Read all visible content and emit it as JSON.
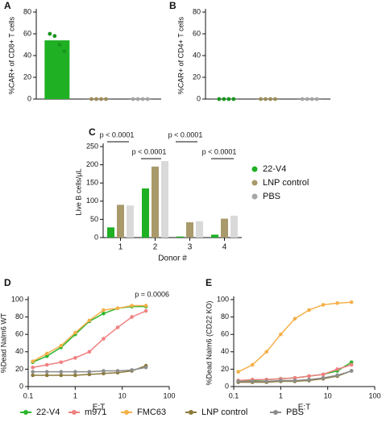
{
  "chart_data": [
    {
      "type": "bar",
      "label": "A",
      "ylabel": "%CAR+ of CD8+ T cells",
      "values": [
        54,
        0,
        0
      ],
      "colors": [
        "#1fb024",
        "#9c8c5a",
        "#a6a6a6"
      ],
      "points": [
        [
          60,
          58,
          50,
          44
        ],
        [
          0,
          0,
          0,
          0
        ],
        [
          0,
          0,
          0,
          0
        ]
      ],
      "ylim": [
        0,
        80
      ],
      "yticks": [
        0,
        20,
        40,
        60,
        80
      ]
    },
    {
      "type": "bar",
      "label": "B",
      "ylabel": "%CAR+ of CD4+ T cells",
      "values": [
        0,
        0,
        0
      ],
      "colors": [
        "#1fb024",
        "#9c8c5a",
        "#a6a6a6"
      ],
      "points": [
        [
          0,
          0,
          0,
          0
        ],
        [
          0,
          0,
          0,
          0
        ],
        [
          0,
          0,
          0,
          0
        ]
      ],
      "ylim": [
        0,
        80
      ],
      "yticks": [
        0,
        20,
        40,
        60,
        80
      ]
    },
    {
      "type": "grouped-bar",
      "label": "C",
      "ylabel": "Live B cells/µL",
      "xlabel": "Donor #",
      "categories": [
        "1",
        "2",
        "3",
        "4"
      ],
      "series": [
        {
          "name": "22-V4",
          "color": "#1fb024",
          "values": [
            28,
            135,
            3,
            8
          ]
        },
        {
          "name": "LNP control",
          "color": "#a89a6a",
          "values": [
            90,
            195,
            42,
            52
          ]
        },
        {
          "name": "PBS",
          "color": "#d9d9d9",
          "values": [
            88,
            210,
            45,
            60
          ]
        }
      ],
      "annotations": [
        "p < 0.0001",
        "p < 0.0001",
        "p < 0.0001",
        "p < 0.0001"
      ],
      "ylim": [
        0,
        250
      ],
      "yticks": [
        0,
        50,
        100,
        150,
        200,
        250
      ]
    },
    {
      "type": "line",
      "label": "D",
      "ylabel": "%Dead Nalm6 WT",
      "xlabel": "E:T",
      "xscale": "log",
      "annotations": [
        "p = 0.0006"
      ],
      "x": [
        0.125,
        0.25,
        0.5,
        1,
        2,
        4,
        8,
        16,
        32
      ],
      "series": [
        {
          "name": "22-V4",
          "color": "#2db52d",
          "values": [
            28,
            35,
            45,
            60,
            75,
            84,
            90,
            92,
            92
          ]
        },
        {
          "name": "m971",
          "color": "#f08080",
          "values": [
            22,
            25,
            28,
            33,
            40,
            55,
            68,
            80,
            87
          ]
        },
        {
          "name": "FMC63",
          "color": "#f5b04a",
          "values": [
            29,
            38,
            47,
            62,
            76,
            88,
            90,
            93,
            93
          ]
        },
        {
          "name": "LNP control",
          "color": "#8b7a3a",
          "values": [
            13,
            13,
            13,
            13,
            14,
            15,
            16,
            18,
            24
          ]
        },
        {
          "name": "PBS",
          "color": "#8c8c8c",
          "values": [
            17,
            17,
            17,
            17,
            17,
            18,
            18,
            19,
            22
          ]
        }
      ],
      "xlim": [
        0.1,
        100
      ],
      "xticks": [
        0.1,
        1,
        10,
        100
      ],
      "ylim": [
        0,
        100
      ],
      "yticks": [
        0,
        20,
        40,
        60,
        80,
        100
      ]
    },
    {
      "type": "line",
      "label": "E",
      "ylabel": "%Dead Nalm6 (CD22 KO)",
      "xlabel": "E:T",
      "xscale": "log",
      "x": [
        0.125,
        0.25,
        0.5,
        1,
        2,
        4,
        8,
        16,
        32
      ],
      "series": [
        {
          "color": "#2db52d",
          "values": [
            6,
            7,
            8,
            9,
            10,
            12,
            14,
            18,
            28
          ]
        },
        {
          "color": "#f08080",
          "values": [
            7,
            8,
            8,
            9,
            10,
            12,
            14,
            20,
            25
          ]
        },
        {
          "color": "#f5b04a",
          "values": [
            17,
            25,
            40,
            60,
            78,
            88,
            94,
            96,
            97
          ]
        },
        {
          "color": "#8b7a3a",
          "values": [
            5,
            5,
            5,
            6,
            6,
            7,
            9,
            12,
            18
          ]
        },
        {
          "color": "#8c8c8c",
          "values": [
            6,
            6,
            6,
            7,
            7,
            8,
            10,
            13,
            18
          ]
        }
      ],
      "xlim": [
        0.1,
        100
      ],
      "xticks": [
        0.1,
        1,
        10,
        100
      ],
      "ylim": [
        0,
        100
      ],
      "yticks": [
        0,
        20,
        40,
        60,
        80,
        100
      ]
    }
  ]
}
